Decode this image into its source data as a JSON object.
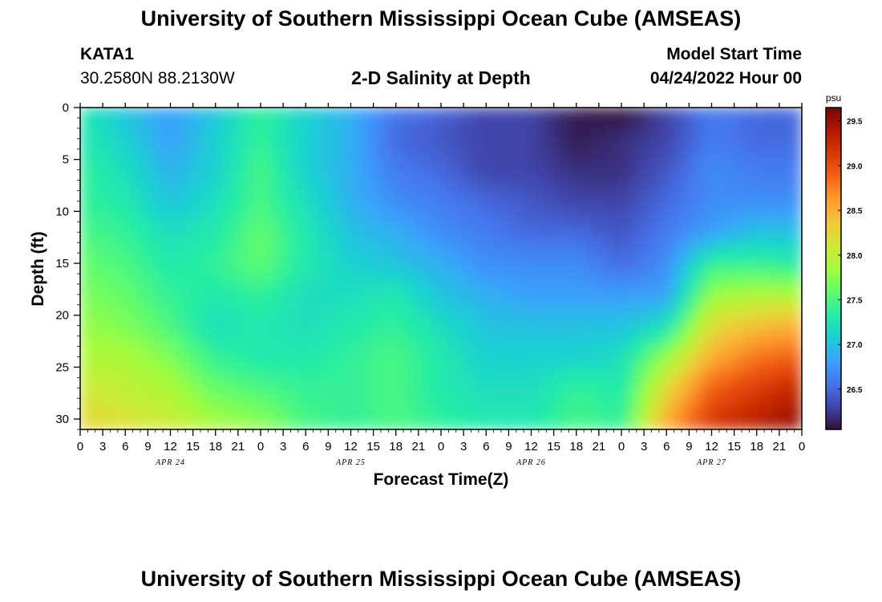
{
  "header": {
    "title": "University of Southern Mississippi Ocean Cube (AMSEAS)",
    "station_id": "KATA1",
    "station_coords": "30.2580N  88.2130W",
    "plot_title": "2-D Salinity at Depth",
    "model_start_label": "Model Start Time",
    "model_start_value": "04/24/2022 Hour 00"
  },
  "footer": {
    "title": "University of Southern Mississippi Ocean Cube (AMSEAS)"
  },
  "chart_data": {
    "type": "heatmap",
    "xlabel": "Forecast Time(Z)",
    "ylabel": "Depth (ft)",
    "x_range_hours": [
      0,
      96
    ],
    "ylim": [
      0,
      31
    ],
    "y_inverted": true,
    "x_tick_labels": [
      "0",
      "3",
      "6",
      "9",
      "12",
      "15",
      "18",
      "21",
      "0",
      "3",
      "6",
      "9",
      "12",
      "15",
      "18",
      "21",
      "0",
      "3",
      "6",
      "9",
      "12",
      "15",
      "18",
      "21",
      "0",
      "3",
      "6",
      "9",
      "12",
      "15",
      "18",
      "21",
      "0"
    ],
    "y_tick_labels": [
      "0",
      "5",
      "10",
      "15",
      "20",
      "25",
      "30"
    ],
    "y_tick_values": [
      0,
      5,
      10,
      15,
      20,
      25,
      30
    ],
    "date_labels": [
      "APR 24",
      "APR 25",
      "APR 26",
      "APR 27"
    ],
    "date_label_hours": [
      12,
      36,
      60,
      84
    ],
    "colorbar": {
      "unit": "psu",
      "range": [
        26.05,
        29.65
      ],
      "tick_labels": [
        "29.5",
        "29.0",
        "28.5",
        "28.0",
        "27.5",
        "27.0",
        "26.5"
      ],
      "tick_values": [
        29.5,
        29.0,
        28.5,
        28.0,
        27.5,
        27.0,
        26.5
      ],
      "colormap": [
        "#30123b",
        "#4145ab",
        "#4675ed",
        "#39a2fc",
        "#1bcfd4",
        "#24eca6",
        "#61fc6c",
        "#a4fc3b",
        "#d1e834",
        "#f3c63a",
        "#fe9b2d",
        "#f36315",
        "#d93806",
        "#b11901",
        "#7a0402"
      ]
    },
    "depths_ft": [
      0,
      3,
      6,
      9,
      12,
      15,
      18,
      21,
      24,
      27,
      31
    ],
    "times_hours": [
      0,
      6,
      12,
      18,
      24,
      30,
      36,
      42,
      48,
      54,
      60,
      66,
      72,
      78,
      84,
      90,
      96
    ],
    "salinity_psu": [
      [
        27.3,
        27.0,
        26.8,
        27.0,
        27.4,
        27.1,
        26.9,
        26.6,
        26.5,
        26.3,
        26.3,
        26.1,
        26.0,
        26.3,
        26.6,
        26.5,
        26.5
      ],
      [
        27.3,
        27.1,
        26.8,
        27.1,
        27.4,
        27.1,
        26.9,
        26.5,
        26.4,
        26.3,
        26.3,
        26.1,
        26.2,
        26.3,
        26.6,
        26.5,
        26.5
      ],
      [
        27.4,
        27.2,
        26.9,
        27.1,
        27.5,
        27.1,
        26.9,
        26.6,
        26.5,
        26.3,
        26.3,
        26.2,
        26.2,
        26.4,
        26.7,
        26.6,
        26.6
      ],
      [
        27.4,
        27.3,
        27.0,
        27.2,
        27.5,
        27.2,
        26.9,
        26.7,
        26.6,
        26.5,
        26.4,
        26.3,
        26.3,
        26.5,
        26.7,
        26.7,
        26.7
      ],
      [
        27.5,
        27.4,
        27.2,
        27.3,
        27.6,
        27.3,
        27.0,
        26.9,
        26.7,
        26.6,
        26.5,
        26.5,
        26.4,
        26.6,
        26.8,
        27.0,
        27.0
      ],
      [
        27.6,
        27.5,
        27.3,
        27.4,
        27.6,
        27.3,
        27.1,
        27.0,
        26.9,
        26.7,
        26.7,
        26.7,
        26.5,
        26.7,
        27.4,
        27.4,
        27.3
      ],
      [
        27.7,
        27.6,
        27.4,
        27.3,
        27.4,
        27.2,
        27.2,
        27.3,
        27.0,
        26.9,
        26.8,
        26.8,
        26.8,
        26.8,
        27.8,
        27.9,
        27.9
      ],
      [
        27.8,
        27.7,
        27.5,
        27.2,
        27.3,
        27.2,
        27.3,
        27.4,
        27.2,
        27.0,
        27.0,
        27.0,
        27.0,
        27.2,
        28.2,
        28.4,
        28.5
      ],
      [
        27.9,
        27.9,
        27.7,
        27.4,
        27.3,
        27.3,
        27.4,
        27.5,
        27.3,
        27.1,
        27.1,
        27.1,
        27.2,
        27.8,
        28.5,
        28.8,
        28.9
      ],
      [
        28.1,
        28.0,
        27.9,
        27.6,
        27.5,
        27.4,
        27.4,
        27.5,
        27.3,
        27.2,
        27.2,
        27.4,
        27.3,
        28.2,
        28.9,
        29.1,
        29.3
      ],
      [
        28.3,
        28.2,
        28.1,
        27.9,
        27.8,
        27.5,
        27.4,
        27.5,
        27.4,
        27.3,
        27.3,
        27.5,
        27.4,
        28.6,
        29.2,
        29.4,
        29.6
      ]
    ]
  }
}
